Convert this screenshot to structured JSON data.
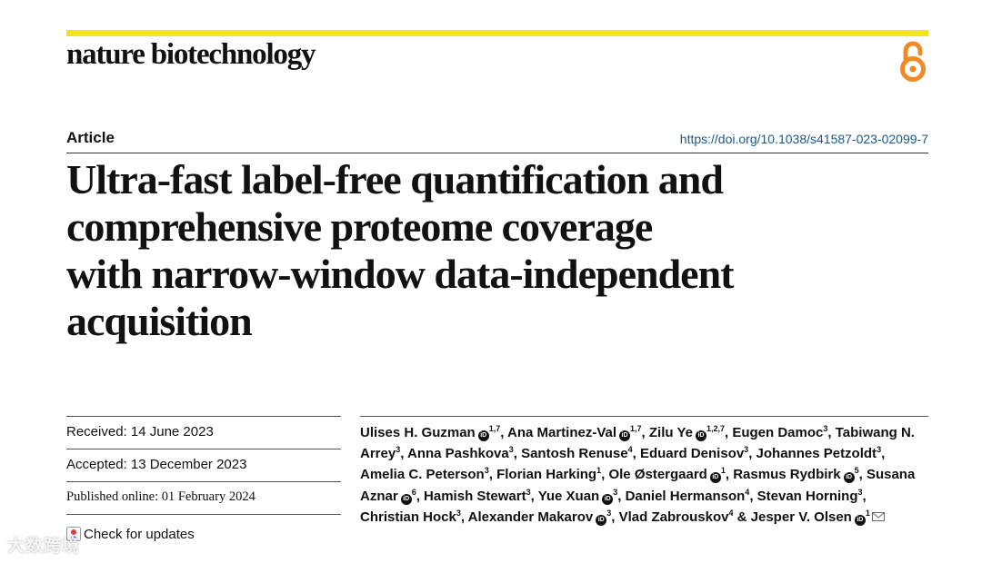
{
  "journal": {
    "name": "nature biotechnology",
    "accent": "#f2e422"
  },
  "header": {
    "type_label": "Article",
    "doi": "https://doi.org/10.1038/s41587-023-02099-7",
    "open_access_icon": "open-access-lock-icon",
    "open_access_color": "#f08a24"
  },
  "title_lines": [
    "Ultra-fast label-free quantification and",
    "comprehensive proteome coverage",
    "with narrow-window data-independent",
    "acquisition"
  ],
  "dates": {
    "received": "Received: 14 June 2023",
    "accepted": "Accepted: 13 December 2023",
    "published": "Published online: 01 February 2024",
    "check_updates": "Check for updates"
  },
  "authors": [
    {
      "name": "Ulises H. Guzman",
      "orcid": true,
      "affil": "1,7"
    },
    {
      "name": "Ana Martinez-Val",
      "orcid": true,
      "affil": "1,7"
    },
    {
      "name": "Zilu Ye",
      "orcid": true,
      "affil": "1,2,7"
    },
    {
      "name": "Eugen Damoc",
      "orcid": false,
      "affil": "3"
    },
    {
      "name": "Tabiwang N. Arrey",
      "orcid": false,
      "affil": "3"
    },
    {
      "name": "Anna Pashkova",
      "orcid": false,
      "affil": "3"
    },
    {
      "name": "Santosh Renuse",
      "orcid": false,
      "affil": "4"
    },
    {
      "name": "Eduard Denisov",
      "orcid": false,
      "affil": "3"
    },
    {
      "name": "Johannes Petzoldt",
      "orcid": false,
      "affil": "3"
    },
    {
      "name": "Amelia C. Peterson",
      "orcid": false,
      "affil": "3"
    },
    {
      "name": "Florian Harking",
      "orcid": false,
      "affil": "1"
    },
    {
      "name": "Ole Østergaard",
      "orcid": true,
      "affil": "1"
    },
    {
      "name": "Rasmus Rydbirk",
      "orcid": true,
      "affil": "5"
    },
    {
      "name": "Susana Aznar",
      "orcid": true,
      "affil": "6"
    },
    {
      "name": "Hamish Stewart",
      "orcid": false,
      "affil": "3"
    },
    {
      "name": "Yue Xuan",
      "orcid": true,
      "affil": "3"
    },
    {
      "name": "Daniel Hermanson",
      "orcid": false,
      "affil": "4"
    },
    {
      "name": "Stevan Horning",
      "orcid": false,
      "affil": "3"
    },
    {
      "name": "Christian Hock",
      "orcid": false,
      "affil": "3"
    },
    {
      "name": "Alexander Makarov",
      "orcid": true,
      "affil": "3"
    },
    {
      "name": "Vlad Zabrouskov",
      "orcid": false,
      "affil": "4"
    },
    {
      "name": "Jesper V. Olsen",
      "orcid": true,
      "affil": "1",
      "corresponding": true
    }
  ],
  "watermark": "大数跨境"
}
